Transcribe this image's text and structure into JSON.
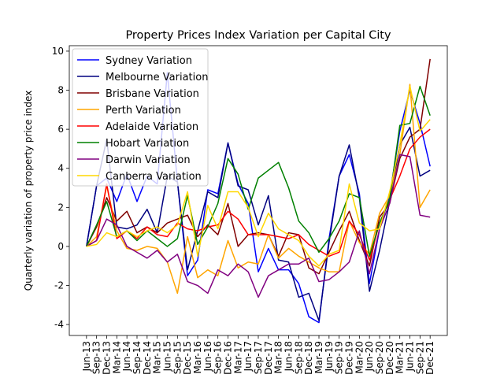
{
  "chart_data": {
    "type": "line",
    "title": "Property Prices Index Variation per Capital City",
    "ylabel": "Quarterly variation of property price index",
    "categories": [
      "Jun-13",
      "Sep-13",
      "Dec-13",
      "Mar-14",
      "Jun-14",
      "Sep-14",
      "Dec-14",
      "Mar-15",
      "Jun-15",
      "Sep-15",
      "Dec-15",
      "Mar-16",
      "Jun-16",
      "Sep-16",
      "Dec-16",
      "Mar-17",
      "Jun-17",
      "Sep-17",
      "Dec-17",
      "Mar-18",
      "Jun-18",
      "Sep-18",
      "Dec-18",
      "Mar-19",
      "Jun-19",
      "Sep-19",
      "Dec-19",
      "Mar-20",
      "Jun-20",
      "Sep-20",
      "Dec-20",
      "Mar-21",
      "Jun-21",
      "Sep-21",
      "Dec-21"
    ],
    "series": [
      {
        "name": "Sydney Variation",
        "color": "#0000ff",
        "values": [
          0,
          3.1,
          3.5,
          2.3,
          3.7,
          2.3,
          3.6,
          3.2,
          8.9,
          3.3,
          -1.5,
          -0.7,
          2.9,
          2.7,
          5.3,
          3.2,
          2.2,
          -1.3,
          -0.1,
          -1.2,
          -1.2,
          -1.9,
          -3.6,
          -3.9,
          0.4,
          3.6,
          4.7,
          2.7,
          -1.9,
          0.9,
          2.6,
          5.9,
          8.0,
          6.3,
          4.1
        ]
      },
      {
        "name": "Melbourne Variation",
        "color": "#000080",
        "values": [
          0,
          3.1,
          5.5,
          1.0,
          0.9,
          1.1,
          1.9,
          0.7,
          3.6,
          3.3,
          -1.2,
          0.8,
          2.8,
          2.5,
          5.3,
          3.1,
          2.9,
          1.1,
          2.6,
          -0.7,
          -0.8,
          -2.6,
          -2.4,
          -3.8,
          0.2,
          3.6,
          5.2,
          2.5,
          -2.3,
          -0.2,
          2.3,
          5.2,
          6.1,
          3.6,
          3.9
        ]
      },
      {
        "name": "Brisbane Variation",
        "color": "#800000",
        "values": [
          0,
          1.0,
          2.5,
          1.3,
          1.8,
          0.7,
          1.0,
          0.7,
          1.2,
          1.4,
          1.6,
          0.5,
          1.1,
          0.6,
          2.2,
          0.0,
          0.6,
          0.7,
          0.6,
          -0.5,
          0.7,
          0.6,
          -1.1,
          -1.4,
          -0.3,
          0.8,
          1.8,
          0.3,
          -1.0,
          1.5,
          2.2,
          4.5,
          5.6,
          6.0,
          9.6
        ]
      },
      {
        "name": "Perth Variation",
        "color": "#ffa500",
        "values": [
          0,
          0.5,
          3.1,
          0.8,
          -0.1,
          -0.2,
          0.0,
          -0.1,
          -0.8,
          -2.4,
          0.5,
          -1.6,
          -1.2,
          -1.5,
          0.3,
          -1.1,
          -0.8,
          -0.9,
          0.6,
          -0.6,
          -0.1,
          -0.5,
          -0.8,
          -1.1,
          -1.3,
          -1.3,
          1.3,
          0.2,
          -0.4,
          1.7,
          2.6,
          4.7,
          8.3,
          2.0,
          2.9
        ]
      },
      {
        "name": "Adelaide Variation",
        "color": "#ff0000",
        "values": [
          0,
          0.3,
          3.2,
          0.4,
          0.8,
          0.4,
          1.0,
          0.6,
          0.5,
          1.2,
          0.9,
          0.8,
          1.0,
          1.1,
          1.8,
          1.4,
          0.6,
          0.6,
          0.6,
          0.5,
          0.4,
          0.6,
          0.1,
          -0.2,
          -0.5,
          -0.3,
          1.3,
          0.6,
          -0.7,
          1.2,
          2.4,
          3.6,
          5.0,
          5.6,
          6.0
        ]
      },
      {
        "name": "Hobart Variation",
        "color": "#008000",
        "values": [
          0,
          1.1,
          2.3,
          0.5,
          0.8,
          0.3,
          0.8,
          0.4,
          0.0,
          0.4,
          2.6,
          0.1,
          1.0,
          2.2,
          4.5,
          3.7,
          1.9,
          3.5,
          3.9,
          4.3,
          3.0,
          1.3,
          0.7,
          -0.3,
          0.4,
          1.3,
          2.7,
          2.5,
          -0.5,
          1.2,
          2.4,
          6.2,
          6.3,
          8.2,
          6.7
        ]
      },
      {
        "name": "Darwin Variation",
        "color": "#800080",
        "values": [
          0,
          0.3,
          1.4,
          1.1,
          0.0,
          -0.3,
          -0.6,
          -0.2,
          -0.8,
          -0.4,
          -1.8,
          -2.0,
          -2.4,
          -1.2,
          -1.5,
          -0.9,
          -1.3,
          -2.6,
          -1.5,
          -1.2,
          -0.9,
          -0.9,
          -0.6,
          -1.8,
          -1.7,
          -1.3,
          -0.8,
          0.8,
          -1.4,
          0.9,
          2.2,
          4.7,
          4.6,
          1.6,
          1.5
        ]
      },
      {
        "name": "Canberra Variation",
        "color": "#ffd700",
        "values": [
          0,
          0.1,
          0.7,
          0.5,
          0.8,
          0.5,
          0.8,
          1.0,
          0.7,
          1.1,
          2.8,
          -0.5,
          2.1,
          0.9,
          2.8,
          2.8,
          2.0,
          0.5,
          1.7,
          0.9,
          0.6,
          0.3,
          -0.5,
          -1.0,
          -0.4,
          -0.2,
          3.2,
          1.2,
          0.8,
          0.9,
          2.8,
          5.2,
          8.2,
          5.9,
          6.5
        ]
      }
    ],
    "ylim": [
      -4.56,
      10.28
    ],
    "yticks": [
      -4,
      -2,
      0,
      2,
      4,
      6,
      8,
      10
    ],
    "legend": "upper left"
  }
}
